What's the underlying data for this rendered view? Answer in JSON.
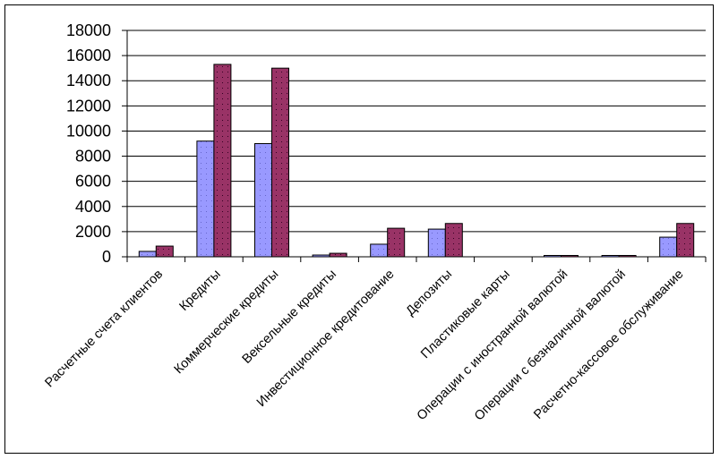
{
  "chart_data": {
    "type": "bar",
    "title": "",
    "xlabel": "",
    "ylabel": "",
    "ylim": [
      0,
      18000
    ],
    "yticks": [
      "0",
      "2000",
      "4000",
      "6000",
      "8000",
      "10000",
      "12000",
      "14000",
      "16000",
      "18000"
    ],
    "grid": true,
    "legend": "none",
    "categories": [
      "Расчетные счета клиентов",
      "Кредиты",
      "Коммерческие кредиты",
      "Вексельные кредиты",
      "Инвестиционное кредитование",
      "Депозиты",
      "Пластиковые карты",
      "Операции с иностранной валютой",
      "Операции с безналичной валютой",
      "Расчетно-кассовое обслуживание"
    ],
    "series": [
      {
        "values": [
          430,
          9200,
          9000,
          140,
          1000,
          2200,
          0,
          30,
          30,
          1560
        ],
        "color": "#9999FF"
      },
      {
        "values": [
          850,
          15300,
          15000,
          280,
          2270,
          2650,
          0,
          30,
          30,
          2650
        ],
        "color": "#993366"
      }
    ]
  }
}
